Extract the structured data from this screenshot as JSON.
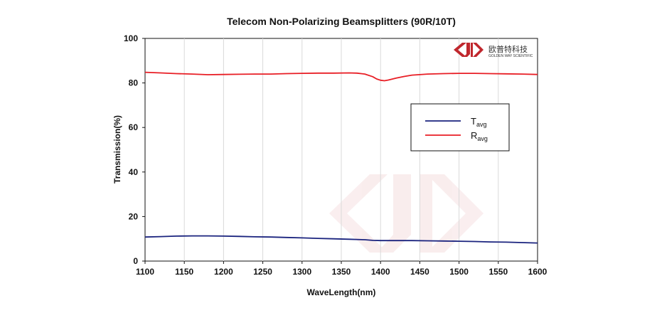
{
  "chart_data": {
    "type": "line",
    "title": "Telecom Non-Polarizing Beamsplitters  (90R/10T)",
    "xlabel": "WaveLength(nm)",
    "ylabel": "Transmission(%)",
    "xlim": [
      1100,
      1600
    ],
    "ylim": [
      0,
      100
    ],
    "xticks": [
      1100,
      1150,
      1200,
      1250,
      1300,
      1350,
      1400,
      1450,
      1500,
      1550,
      1600
    ],
    "yticks": [
      0,
      20,
      40,
      60,
      80,
      100
    ],
    "grid": "vertical",
    "legend_position": "right-middle",
    "series": [
      {
        "name": "T",
        "name_sub": "avg",
        "color": "#1a237e",
        "x": [
          1100,
          1120,
          1140,
          1160,
          1180,
          1200,
          1220,
          1240,
          1260,
          1280,
          1300,
          1320,
          1340,
          1360,
          1380,
          1390,
          1400,
          1410,
          1420,
          1440,
          1460,
          1480,
          1500,
          1520,
          1540,
          1560,
          1580,
          1600
        ],
        "y": [
          10.8,
          11.0,
          11.2,
          11.3,
          11.3,
          11.2,
          11.1,
          10.9,
          10.8,
          10.6,
          10.4,
          10.2,
          10.0,
          9.8,
          9.6,
          9.3,
          9.2,
          9.2,
          9.2,
          9.2,
          9.1,
          9.0,
          8.9,
          8.8,
          8.6,
          8.5,
          8.3,
          8.1
        ]
      },
      {
        "name": "R",
        "name_sub": "avg",
        "color": "#e81e25",
        "x": [
          1100,
          1120,
          1140,
          1160,
          1180,
          1200,
          1220,
          1240,
          1260,
          1280,
          1300,
          1320,
          1340,
          1360,
          1370,
          1380,
          1390,
          1395,
          1400,
          1405,
          1410,
          1420,
          1430,
          1440,
          1460,
          1480,
          1500,
          1520,
          1540,
          1560,
          1580,
          1600
        ],
        "y": [
          84.8,
          84.5,
          84.2,
          84.0,
          83.7,
          83.8,
          83.9,
          84.0,
          84.0,
          84.2,
          84.3,
          84.4,
          84.4,
          84.5,
          84.4,
          84.0,
          82.8,
          81.8,
          81.2,
          81.0,
          81.3,
          82.2,
          82.9,
          83.5,
          84.0,
          84.2,
          84.3,
          84.3,
          84.2,
          84.1,
          84.0,
          83.8
        ]
      }
    ]
  },
  "logo": {
    "name_cn": "欧普特科技",
    "name_en": "GOLDEN WAY SCIENTIFIC",
    "color": "#c0272d"
  }
}
